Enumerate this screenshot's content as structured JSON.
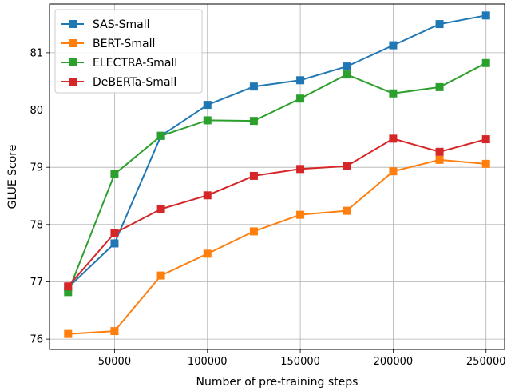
{
  "chart_data": {
    "type": "line",
    "title": "",
    "xlabel": "Number of pre-training steps",
    "ylabel": "GLUE Score",
    "x": [
      25000,
      50000,
      75000,
      100000,
      125000,
      150000,
      175000,
      200000,
      225000,
      250000
    ],
    "xlim": [
      15000,
      260000
    ],
    "ylim": [
      75.82,
      81.85
    ],
    "xticks": [
      50000,
      100000,
      150000,
      200000,
      250000
    ],
    "xtick_labels": [
      "50000",
      "100000",
      "150000",
      "200000",
      "250000"
    ],
    "yticks": [
      76,
      77,
      78,
      79,
      80,
      81
    ],
    "ytick_labels": [
      "76",
      "77",
      "78",
      "79",
      "80",
      "81"
    ],
    "grid": true,
    "legend_position": "top-left",
    "series": [
      {
        "name": "SAS-Small",
        "color": "#1f77b4",
        "values": [
          76.9,
          77.67,
          79.55,
          80.09,
          80.41,
          80.52,
          80.76,
          81.13,
          81.5,
          81.65
        ]
      },
      {
        "name": "BERT-Small",
        "color": "#ff7f0e",
        "values": [
          76.09,
          76.14,
          77.11,
          77.49,
          77.88,
          78.17,
          78.24,
          78.93,
          79.13,
          79.06
        ]
      },
      {
        "name": "ELECTRA-Small",
        "color": "#2ca02c",
        "values": [
          76.82,
          78.88,
          79.55,
          79.82,
          79.81,
          80.2,
          80.62,
          80.29,
          80.4,
          80.82
        ]
      },
      {
        "name": "DeBERTa-Small",
        "color": "#d62728",
        "values": [
          76.92,
          77.85,
          78.27,
          78.51,
          78.85,
          78.97,
          79.02,
          79.5,
          79.27,
          79.49
        ]
      }
    ]
  }
}
